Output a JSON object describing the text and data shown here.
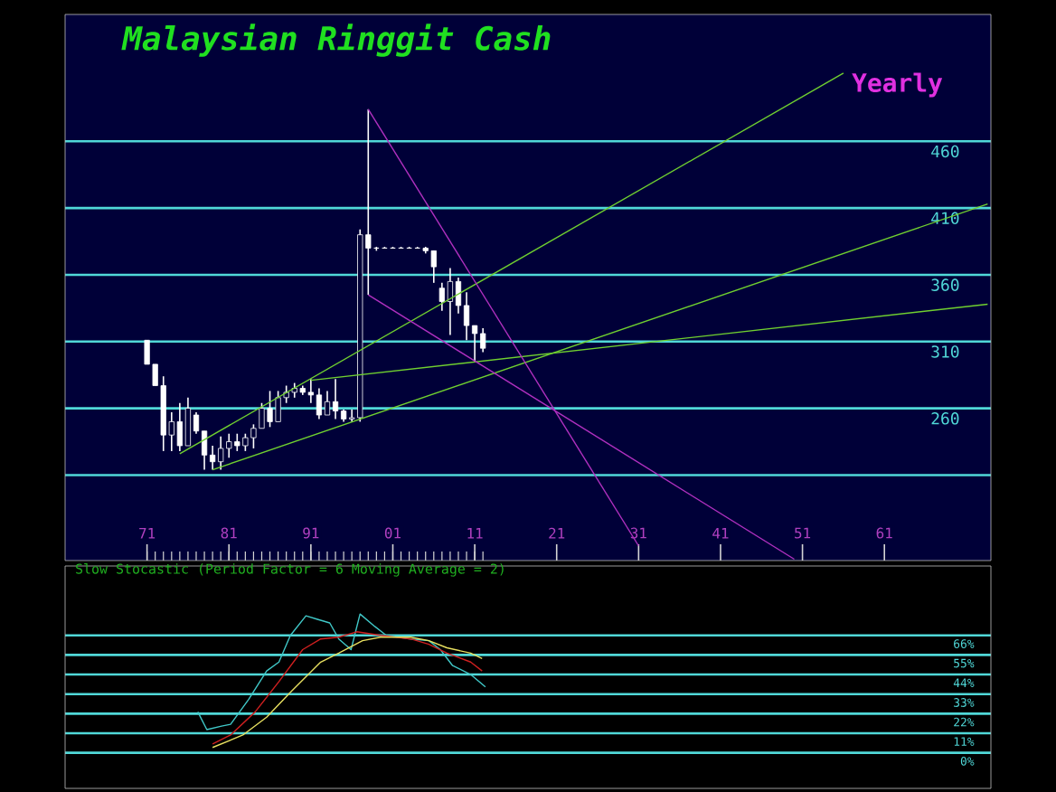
{
  "chart_data": [
    {
      "type": "candlestick",
      "title": "Malaysian Ringgit Cash",
      "subtitle": "Yearly",
      "color": "#ffffff",
      "x": [
        1971,
        1972,
        1973,
        1974,
        1975,
        1976,
        1977,
        1978,
        1979,
        1980,
        1981,
        1982,
        1983,
        1984,
        1985,
        1986,
        1987,
        1988,
        1989,
        1990,
        1991,
        1992,
        1993,
        1994,
        1995,
        1996,
        1997,
        1998,
        1999,
        2000,
        2001,
        2002,
        2003,
        2004,
        2005,
        2006,
        2007,
        2008,
        2009,
        2010,
        2011,
        2012
      ],
      "ohlc": [
        [
          311,
          311,
          293,
          293
        ],
        [
          293,
          293,
          277,
          277
        ],
        [
          277,
          284,
          228,
          240
        ],
        [
          240,
          257,
          228,
          250
        ],
        [
          250,
          264,
          228,
          232
        ],
        [
          232,
          268,
          232,
          260
        ],
        [
          255,
          257,
          241,
          243
        ],
        [
          243,
          243,
          214,
          225
        ],
        [
          225,
          232,
          214,
          220
        ],
        [
          220,
          239,
          214,
          230
        ],
        [
          230,
          241,
          223,
          235
        ],
        [
          235,
          241,
          228,
          232
        ],
        [
          232,
          241,
          228,
          238
        ],
        [
          238,
          248,
          230,
          245
        ],
        [
          245,
          264,
          245,
          260
        ],
        [
          260,
          273,
          246,
          250
        ],
        [
          250,
          273,
          250,
          268
        ],
        [
          268,
          277,
          264,
          272
        ],
        [
          272,
          279,
          268,
          275
        ],
        [
          275,
          277,
          270,
          272
        ],
        [
          272,
          282,
          264,
          270
        ],
        [
          270,
          275,
          252,
          255
        ],
        [
          255,
          273,
          255,
          265
        ],
        [
          265,
          282,
          252,
          258
        ],
        [
          258,
          259,
          250,
          252
        ],
        [
          252,
          259,
          250,
          253
        ],
        [
          253,
          394,
          250,
          390
        ],
        [
          390,
          484,
          345,
          380
        ],
        [
          380,
          381,
          378,
          380
        ],
        [
          380,
          381,
          380,
          380
        ],
        [
          380,
          381,
          380,
          380
        ],
        [
          380,
          381,
          380,
          380
        ],
        [
          380,
          381,
          380,
          380
        ],
        [
          380,
          381,
          380,
          380
        ],
        [
          380,
          381,
          376,
          378
        ],
        [
          378,
          378,
          354,
          366
        ],
        [
          350,
          354,
          333,
          340
        ],
        [
          340,
          365,
          315,
          355
        ],
        [
          355,
          358,
          331,
          337
        ],
        [
          337,
          347,
          311,
          322
        ],
        [
          322,
          322,
          295,
          316
        ],
        [
          316,
          320,
          302,
          305
        ]
      ],
      "series": [
        {
          "type": "line",
          "color": "#70d030",
          "x": [
            1975,
            2056
          ],
          "values": [
            226,
            511
          ]
        },
        {
          "type": "line",
          "color": "#70d030",
          "x": [
            1979,
            2073.6
          ],
          "values": [
            214,
            413
          ]
        },
        {
          "type": "line",
          "color": "#70d030",
          "x": [
            1991,
            2073.6
          ],
          "values": [
            281,
            338
          ]
        },
        {
          "type": "line",
          "color": "#b030c0",
          "x": [
            1998,
            2031
          ],
          "values": [
            484,
            157
          ]
        },
        {
          "type": "line",
          "color": "#b030c0",
          "x": [
            1998,
            2050
          ],
          "values": [
            345,
            147
          ]
        }
      ],
      "xlim": [
        1961,
        2074
      ],
      "ylim": [
        146,
        555
      ],
      "xticks": [
        {
          "value": 1971,
          "label": "71"
        },
        {
          "value": 1981,
          "label": "81"
        },
        {
          "value": 1991,
          "label": "91"
        },
        {
          "value": 2001,
          "label": "01"
        },
        {
          "value": 2011,
          "label": "11"
        },
        {
          "value": 2021,
          "label": "21"
        },
        {
          "value": 2031,
          "label": "31"
        },
        {
          "value": 2041,
          "label": "41"
        },
        {
          "value": 2051,
          "label": "51"
        },
        {
          "value": 2061,
          "label": "61"
        }
      ],
      "yticks": [
        {
          "value": 210,
          "label": null
        },
        260,
        310,
        360,
        410,
        460
      ],
      "grid": "y"
    },
    {
      "type": "line",
      "title": "Slow Stocastic (Period Factor =  6 Moving Average =  2)",
      "series": [
        {
          "color": "#40c8c8",
          "x": [
            1977.2,
            1978.3,
            1980.1,
            1981.2,
            1983.4,
            1985.6,
            1987.1,
            1988.5,
            1990.4,
            1991.8,
            1993.3,
            1994.4,
            1995.9,
            1997.0,
            1998.8,
            2000.2,
            2003.2,
            2005.4,
            2006.8,
            2008.3,
            2010.5,
            2012.3
          ],
          "values": [
            23,
            13,
            15,
            16,
            30,
            46,
            51,
            66,
            77,
            75,
            73,
            64,
            58,
            78,
            71,
            66,
            64,
            63,
            58,
            49,
            44,
            37
          ]
        },
        {
          "color": "#d02020",
          "x": [
            1979.0,
            1981.2,
            1984.2,
            1987.1,
            1990.0,
            1992.2,
            1994.4,
            1996.6,
            1999.5,
            2003.2,
            2005.4,
            2007.6,
            2010.5,
            2011.9
          ],
          "values": [
            5,
            10,
            23,
            40,
            58,
            64,
            65,
            68,
            66,
            64,
            61,
            56,
            51,
            46
          ]
        },
        {
          "color": "#e8e060",
          "x": [
            1979.0,
            1982.7,
            1985.6,
            1988.5,
            1992.2,
            1994.4,
            1997.3,
            1999.5,
            2003.2,
            2005.4,
            2007.6,
            2010.5,
            2011.9
          ],
          "values": [
            3,
            10,
            20,
            34,
            51,
            56,
            63,
            65,
            65,
            63,
            59,
            56,
            53
          ]
        }
      ],
      "xlim": [
        1961,
        2074
      ],
      "ylim": [
        -20,
        105
      ],
      "yticks": [
        {
          "value": 0,
          "label": "0%"
        },
        {
          "value": 11,
          "label": "11%"
        },
        {
          "value": 22,
          "label": "22%"
        },
        {
          "value": 33,
          "label": "33%"
        },
        {
          "value": 44,
          "label": "44%"
        },
        {
          "value": 55,
          "label": "55%"
        },
        {
          "value": 66,
          "label": "66%"
        }
      ],
      "tick_labels": "y",
      "grid": "y"
    }
  ]
}
